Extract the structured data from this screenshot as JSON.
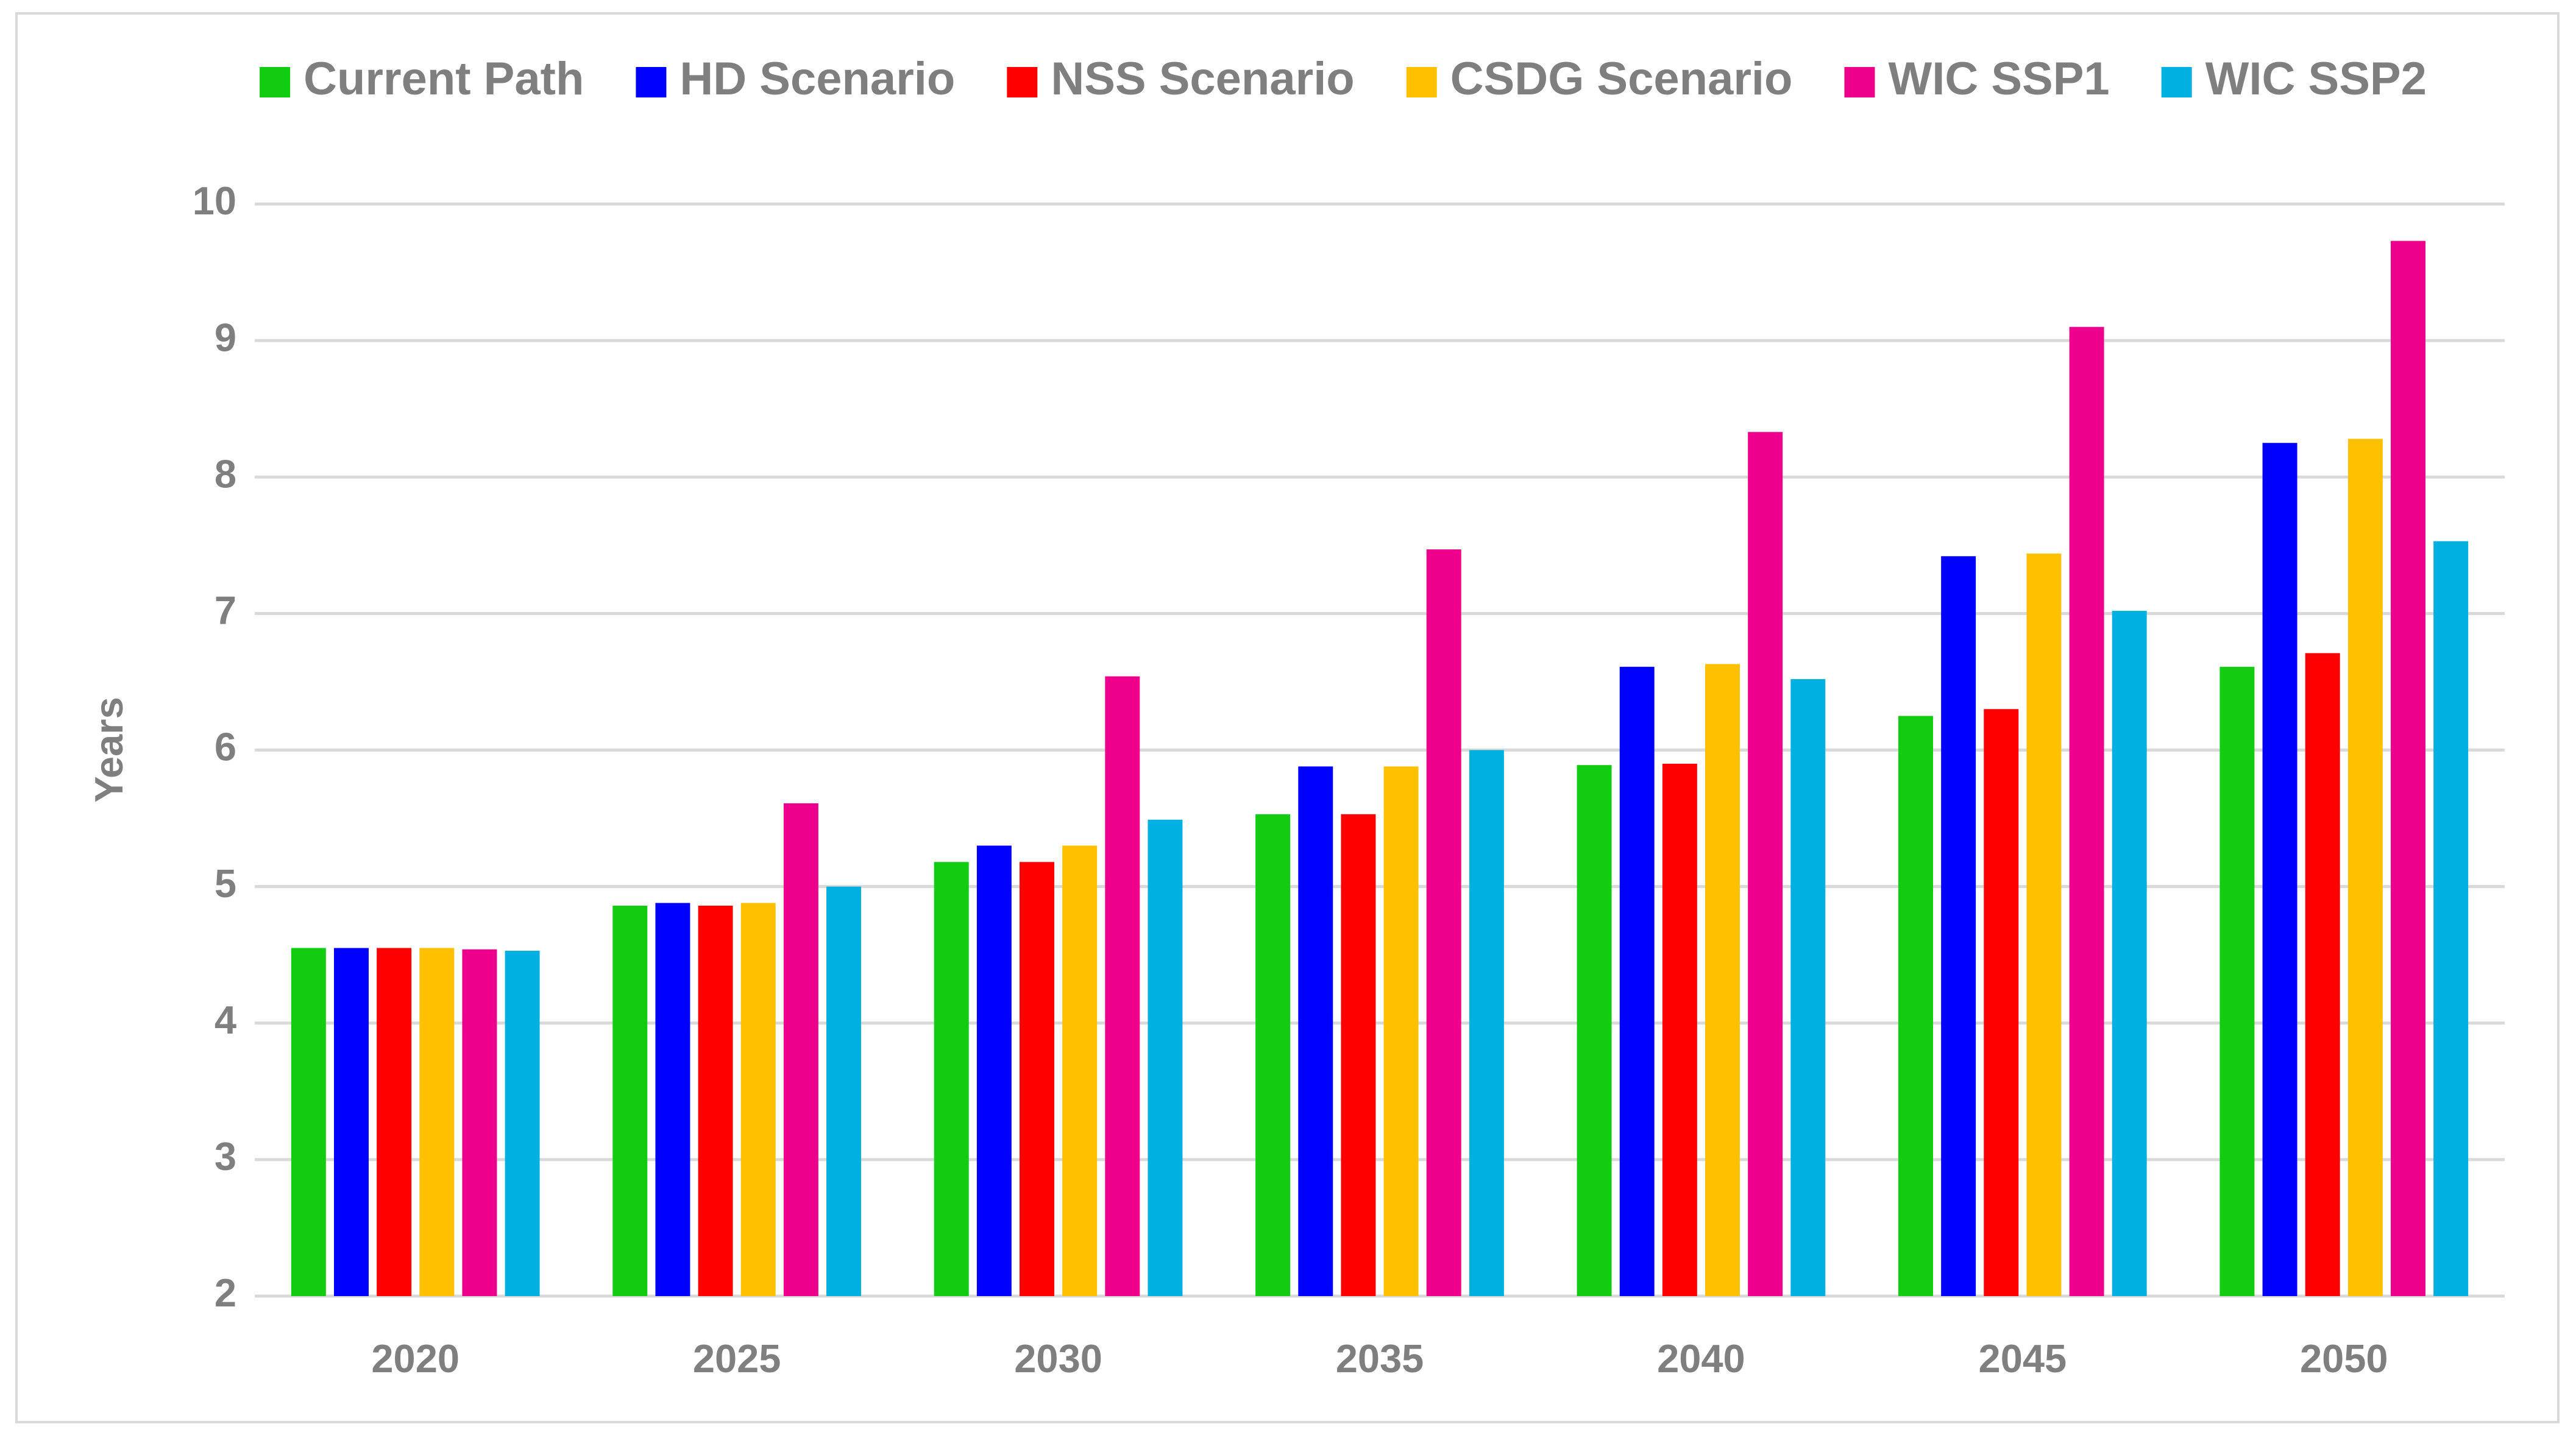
{
  "chart_data": {
    "type": "bar",
    "y_label": "Years",
    "categories": [
      "2020",
      "2025",
      "2030",
      "2035",
      "2040",
      "2045",
      "2050"
    ],
    "series": [
      {
        "name": "Current Path",
        "color": "#11cc11",
        "values": [
          4.55,
          4.86,
          5.18,
          5.53,
          5.89,
          6.25,
          6.61
        ]
      },
      {
        "name": "HD Scenario",
        "color": "#0000ff",
        "values": [
          4.55,
          4.88,
          5.3,
          5.88,
          6.61,
          7.42,
          8.25
        ]
      },
      {
        "name": "NSS Scenario",
        "color": "#ff0000",
        "values": [
          4.55,
          4.86,
          5.18,
          5.53,
          5.9,
          6.3,
          6.71
        ]
      },
      {
        "name": "CSDG Scenario",
        "color": "#ffc000",
        "values": [
          4.55,
          4.88,
          5.3,
          5.88,
          6.63,
          7.44,
          8.28
        ]
      },
      {
        "name": "WIC SSP1",
        "color": "#ec008c",
        "values": [
          4.54,
          5.61,
          6.54,
          7.47,
          8.33,
          9.1,
          9.73
        ]
      },
      {
        "name": "WIC SSP2",
        "color": "#00b0e0",
        "values": [
          4.53,
          5.0,
          5.49,
          6.0,
          6.52,
          7.02,
          7.53
        ]
      }
    ],
    "ylim": [
      2,
      10
    ],
    "yticks": [
      2,
      3,
      4,
      5,
      6,
      7,
      8,
      9,
      10
    ],
    "grid": true,
    "legend": "top"
  }
}
